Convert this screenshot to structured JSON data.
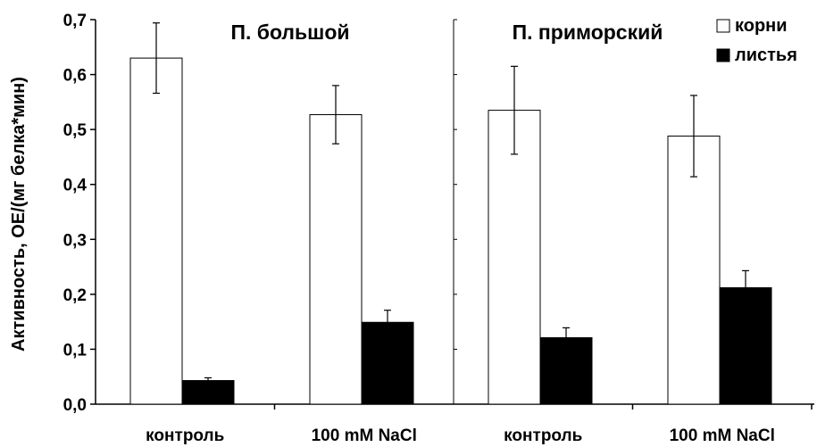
{
  "chart_data": {
    "type": "bar",
    "ylabel": "Активность, ОЕ/(мг белка*мин)",
    "ylim": [
      0,
      0.7
    ],
    "yticks": [
      "0,0",
      "0,1",
      "0,2",
      "0,3",
      "0,4",
      "0,5",
      "0,6",
      "0,7"
    ],
    "legend": {
      "placement": "top-right",
      "items": [
        {
          "name": "корни",
          "color": "#ffffff"
        },
        {
          "name": "листья",
          "color": "#000000"
        }
      ]
    },
    "panels": [
      {
        "title": "П. большой",
        "categories": [
          "контроль",
          "100 mM NaCl"
        ],
        "series": [
          {
            "name": "корни",
            "values": [
              0.63,
              0.527
            ],
            "errors": [
              0.064,
              0.053
            ]
          },
          {
            "name": "листья",
            "values": [
              0.043,
              0.149
            ],
            "errors": [
              0.005,
              0.022
            ]
          }
        ]
      },
      {
        "title": "П. приморский",
        "categories": [
          "контроль",
          "100 mM NaCl"
        ],
        "series": [
          {
            "name": "корни",
            "values": [
              0.535,
              0.488
            ],
            "errors": [
              0.08,
              0.074
            ]
          },
          {
            "name": "листья",
            "values": [
              0.121,
              0.212
            ],
            "errors": [
              0.018,
              0.031
            ]
          }
        ]
      }
    ]
  }
}
